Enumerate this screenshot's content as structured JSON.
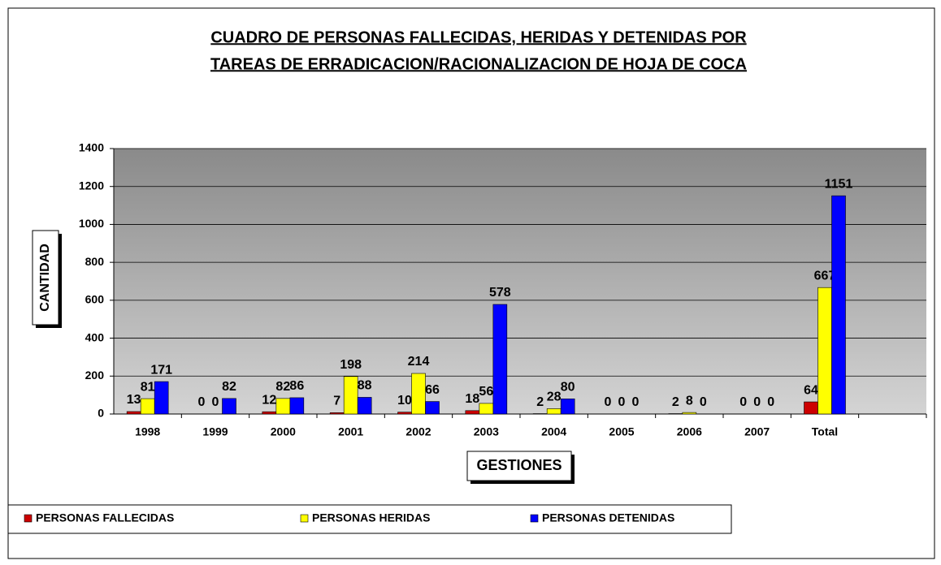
{
  "chart_data": {
    "type": "bar",
    "title_lines": [
      "CUADRO DE PERSONAS FALLECIDAS, HERIDAS Y DETENIDAS POR",
      "TAREAS DE ERRADICACION/RACIONALIZACION DE HOJA DE COCA"
    ],
    "y_label": "CANTIDAD",
    "x_label": "GESTIONES",
    "categories": [
      "1998",
      "1999",
      "2000",
      "2001",
      "2002",
      "2003",
      "2004",
      "2005",
      "2006",
      "2007",
      "Total",
      null
    ],
    "series": [
      {
        "name": "PERSONAS FALLECIDAS",
        "color": "#cc0000",
        "values": [
          13,
          0,
          12,
          7,
          10,
          18,
          2,
          0,
          2,
          0,
          64,
          null
        ]
      },
      {
        "name": "PERSONAS HERIDAS",
        "color": "#ffff00",
        "values": [
          81,
          0,
          82,
          198,
          214,
          56,
          28,
          0,
          8,
          0,
          667,
          null
        ]
      },
      {
        "name": "PERSONAS DETENIDAS",
        "color": "#0000ff",
        "values": [
          171,
          82,
          86,
          88,
          66,
          578,
          80,
          0,
          0,
          0,
          1151,
          null
        ]
      }
    ],
    "ylim": [
      0,
      1400
    ],
    "yticks": [
      0,
      200,
      400,
      600,
      800,
      1000,
      1200,
      1400
    ],
    "grid": true,
    "legend": "bottom"
  }
}
